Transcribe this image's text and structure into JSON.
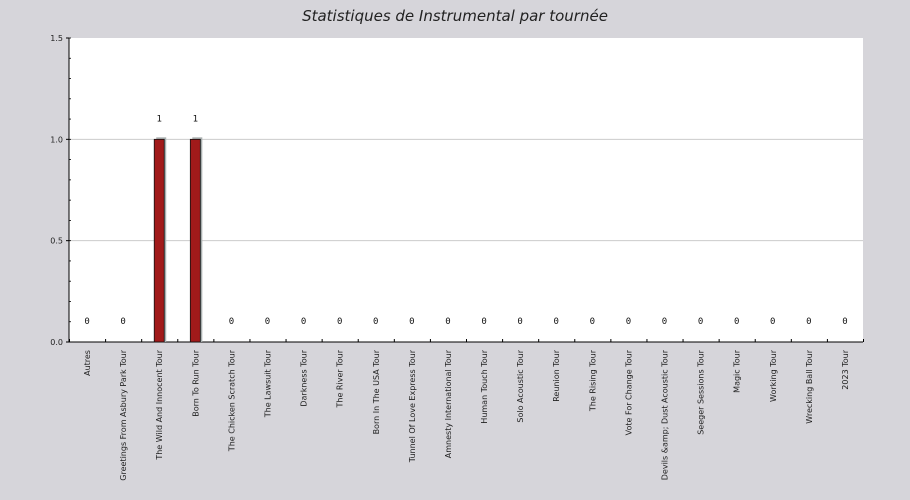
{
  "chart_data": {
    "type": "bar",
    "title": "Statistiques de Instrumental par tournée",
    "xlabel": "",
    "ylabel": "",
    "ylim": [
      0,
      1.5
    ],
    "yticks": [
      0.0,
      0.5,
      1.0,
      1.5
    ],
    "ytick_labels": [
      "0.0",
      "0.5",
      "1.0",
      "1.5"
    ],
    "grid": true,
    "categories": [
      "Autres",
      "Greetings From Asbury Park Tour",
      "The Wild And Innocent Tour",
      "Born To Run Tour",
      "The Chicken Scratch Tour",
      "The Lawsuit Tour",
      "Darkness Tour",
      "The River Tour",
      "Born In The USA Tour",
      "Tunnel Of Love Express Tour",
      "Amnesty International Tour",
      "Human Touch Tour",
      "Solo Acoustic Tour",
      "Reunion Tour",
      "The Rising Tour",
      "Vote For Change Tour",
      "Devils &amp; Dust Acoustic Tour",
      "Seeger Sessions Tour",
      "Magic Tour",
      "Working Tour",
      "Wrecking Ball Tour",
      "2023 Tour"
    ],
    "values": [
      0,
      0,
      1,
      1,
      0,
      0,
      0,
      0,
      0,
      0,
      0,
      0,
      0,
      0,
      0,
      0,
      0,
      0,
      0,
      0,
      0,
      0
    ],
    "value_labels": [
      "0",
      "0",
      "1",
      "1",
      "0",
      "0",
      "0",
      "0",
      "0",
      "0",
      "0",
      "0",
      "0",
      "0",
      "0",
      "0",
      "0",
      "0",
      "0",
      "0",
      "0",
      "0"
    ],
    "colors": {
      "bar": "#a11a1a",
      "bar_shadow": "#a9b0b0",
      "plot_bg": "#ffffff",
      "page_bg": "#d6d5da",
      "grid": "#cccccc"
    }
  }
}
